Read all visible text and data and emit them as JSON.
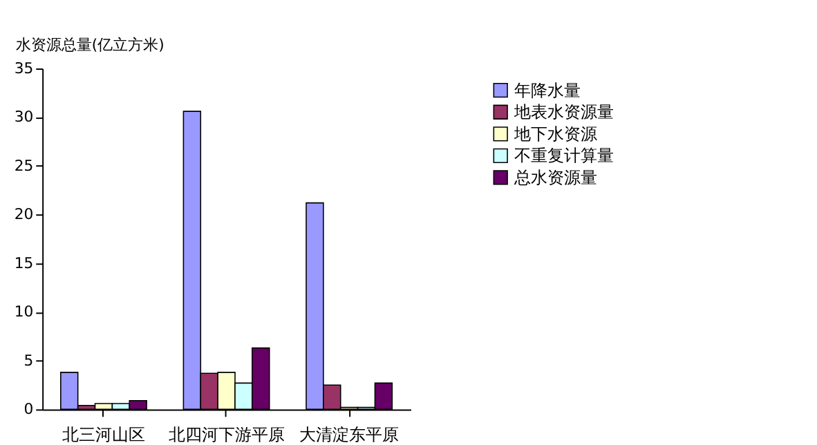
{
  "chart_data": {
    "type": "bar",
    "ylabel": "水资源总量(亿立方米)",
    "categories": [
      "北三河山区",
      "北四河下游平原",
      "大清淀东平原"
    ],
    "series": [
      {
        "name": "年降水量",
        "color": "#9999ff",
        "values": [
          3.8,
          30.6,
          21.2
        ]
      },
      {
        "name": "地表水资源量",
        "color": "#993366",
        "values": [
          0.4,
          3.7,
          2.5
        ]
      },
      {
        "name": "地下水资源",
        "color": "#ffffcc",
        "values": [
          0.6,
          3.8,
          0.2
        ]
      },
      {
        "name": "不重复计算量",
        "color": "#ccffff",
        "values": [
          0.6,
          2.7,
          0.2
        ]
      },
      {
        "name": "总水资源量",
        "color": "#660066",
        "values": [
          0.9,
          6.3,
          2.7
        ]
      }
    ],
    "ylim": [
      0,
      35
    ],
    "yticks": [
      0,
      5,
      10,
      15,
      20,
      25,
      30,
      35
    ],
    "grid": false,
    "legend": "top right"
  }
}
